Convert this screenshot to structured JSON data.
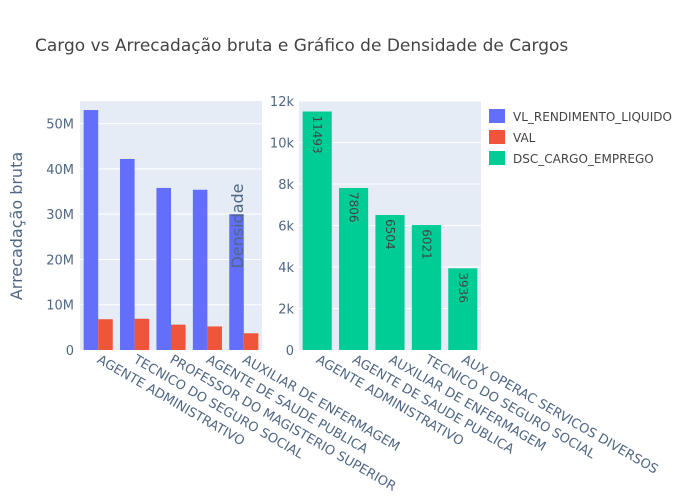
{
  "title": "Cargo vs Arrecadação bruta e Gráfico de Densidade de Cargos",
  "colors": {
    "VL_RENDIMENTO_LIQUIDO": "#636efa",
    "VAL": "#ef553b",
    "DSC_CARGO_EMPREGO": "#00cc96",
    "plot_bg": "#e5ecf6"
  },
  "legend": [
    "VL_RENDIMENTO_LIQUIDO",
    "VAL",
    "DSC_CARGO_EMPREGO"
  ],
  "chart_data": [
    {
      "type": "bar",
      "ylabel": "Arrecadação bruta",
      "xlabel": "",
      "ylim": [
        0,
        55000000
      ],
      "yticks": [
        {
          "v": 0,
          "label": "0"
        },
        {
          "v": 10000000,
          "label": "10M"
        },
        {
          "v": 20000000,
          "label": "20M"
        },
        {
          "v": 30000000,
          "label": "30M"
        },
        {
          "v": 40000000,
          "label": "40M"
        },
        {
          "v": 50000000,
          "label": "50M"
        }
      ],
      "categories": [
        "AGENTE ADMINISTRATIVO",
        "TECNICO DO SEGURO SOCIAL",
        "PROFESSOR DO MAGISTERIO SUPERIOR",
        "AGENTE DE SAUDE PUBLICA",
        "AUXILIAR DE ENFERMAGEM"
      ],
      "series": [
        {
          "name": "VL_RENDIMENTO_LIQUIDO",
          "values": [
            53000000,
            42200000,
            35800000,
            35400000,
            30000000
          ]
        },
        {
          "name": "VAL",
          "values": [
            6800000,
            6900000,
            5600000,
            5200000,
            3700000
          ]
        }
      ]
    },
    {
      "type": "bar",
      "ylabel": "Densidade",
      "xlabel": "",
      "ylim": [
        0,
        12000
      ],
      "yticks": [
        {
          "v": 0,
          "label": "0"
        },
        {
          "v": 2000,
          "label": "2k"
        },
        {
          "v": 4000,
          "label": "4k"
        },
        {
          "v": 6000,
          "label": "6k"
        },
        {
          "v": 8000,
          "label": "8k"
        },
        {
          "v": 10000,
          "label": "10k"
        },
        {
          "v": 12000,
          "label": "12k"
        }
      ],
      "categories": [
        "AGENTE ADMINISTRATIVO",
        "AGENTE DE SAUDE PUBLICA",
        "AUXILIAR DE ENFERMAGEM",
        "TECNICO DO SEGURO SOCIAL",
        "AUX OPERAC SERVICOS DIVERSOS"
      ],
      "series": [
        {
          "name": "DSC_CARGO_EMPREGO",
          "values": [
            11493,
            7806,
            6504,
            6021,
            3936
          ],
          "data_labels": [
            "11493",
            "7806",
            "6504",
            "6021",
            "3936"
          ]
        }
      ]
    }
  ]
}
